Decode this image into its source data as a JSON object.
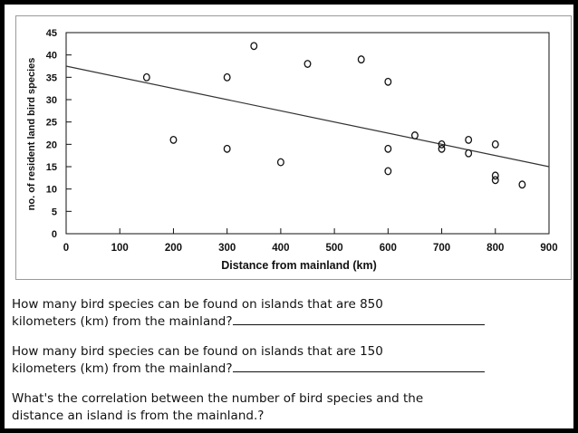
{
  "chart_data": {
    "type": "scatter",
    "title": "",
    "xlabel": "Distance from mainland (km)",
    "ylabel": "no. of resident land bird species",
    "xlim": [
      0,
      900
    ],
    "ylim": [
      0,
      45
    ],
    "xticks": [
      0,
      100,
      200,
      300,
      400,
      500,
      600,
      700,
      800,
      900
    ],
    "yticks": [
      0,
      5,
      10,
      15,
      20,
      25,
      30,
      35,
      40,
      45
    ],
    "grid": false,
    "legend": "none",
    "points": [
      {
        "x": 150,
        "y": 35
      },
      {
        "x": 200,
        "y": 21
      },
      {
        "x": 300,
        "y": 35
      },
      {
        "x": 300,
        "y": 19
      },
      {
        "x": 350,
        "y": 42
      },
      {
        "x": 400,
        "y": 16
      },
      {
        "x": 450,
        "y": 38
      },
      {
        "x": 550,
        "y": 39
      },
      {
        "x": 600,
        "y": 34
      },
      {
        "x": 600,
        "y": 19
      },
      {
        "x": 600,
        "y": 14
      },
      {
        "x": 650,
        "y": 22
      },
      {
        "x": 700,
        "y": 20
      },
      {
        "x": 700,
        "y": 19
      },
      {
        "x": 750,
        "y": 21
      },
      {
        "x": 750,
        "y": 18
      },
      {
        "x": 800,
        "y": 20
      },
      {
        "x": 800,
        "y": 13
      },
      {
        "x": 800,
        "y": 12
      },
      {
        "x": 850,
        "y": 11
      }
    ],
    "trendline": {
      "x": [
        0,
        900
      ],
      "y": [
        37.5,
        15
      ]
    }
  },
  "questions": {
    "q1_line1": "How many bird species can be found on islands that are 850",
    "q1_line2": "kilometers (km) from the mainland?",
    "q2_line1": "How many bird species can be found on islands that are 150",
    "q2_line2": "kilometers (km) from the mainland?",
    "q3_line1": "What's the correlation between the number of bird species and the",
    "q3_line2": "distance an island is from the mainland.?"
  },
  "colors": {
    "ink": "#111111",
    "trendline": "#333333",
    "panel_border": "#9a9a9a"
  }
}
